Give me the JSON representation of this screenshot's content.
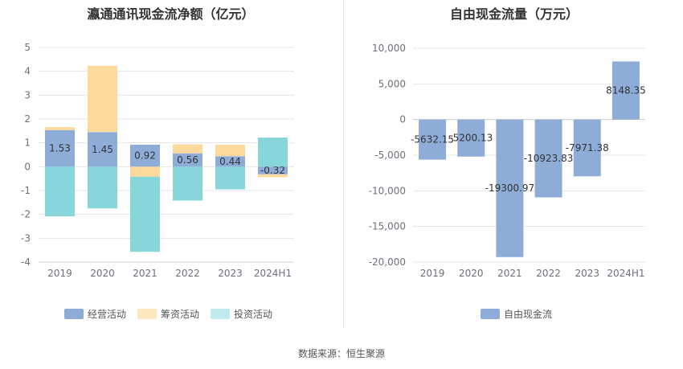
{
  "source": "数据来源：恒生聚源",
  "chart_data": [
    {
      "type": "bar",
      "stacked": true,
      "title": "瀛通通讯现金流净额（亿元）",
      "categories": [
        "2019",
        "2020",
        "2021",
        "2022",
        "2023",
        "2024H1"
      ],
      "ylim": [
        -4,
        5
      ],
      "yticks": [
        5,
        4,
        3,
        2,
        1,
        0,
        -1,
        -2,
        -3,
        -4
      ],
      "grid": true,
      "legend_position": "bottom",
      "series": [
        {
          "name": "经营活动",
          "color": "#8eacd8",
          "values": [
            1.53,
            1.45,
            0.92,
            0.56,
            0.44,
            -0.32
          ],
          "labels": [
            "1.53",
            "1.45",
            "0.92",
            "0.56",
            "0.44",
            "-0.32"
          ]
        },
        {
          "name": "筹资活动",
          "color": "#fdd99c",
          "values": [
            0.13,
            2.78,
            -0.42,
            0.38,
            0.48,
            -0.12
          ]
        },
        {
          "name": "投资活动",
          "color": "#87d6db",
          "values": [
            -2.08,
            -1.75,
            -3.15,
            -1.42,
            -0.95,
            1.22
          ]
        }
      ]
    },
    {
      "type": "bar",
      "title": "自由现金流量（万元）",
      "categories": [
        "2019",
        "2020",
        "2021",
        "2022",
        "2023",
        "2024H1"
      ],
      "ylim": [
        -20000,
        10000
      ],
      "yticks": [
        10000,
        5000,
        0,
        -5000,
        -10000,
        -15000,
        -20000
      ],
      "ytick_labels": [
        "10,000",
        "5,000",
        "0",
        "-5,000",
        "-10,000",
        "-15,000",
        "-20,000"
      ],
      "grid": true,
      "legend_position": "bottom",
      "series": [
        {
          "name": "自由现金流",
          "color": "#8eacd8",
          "values": [
            -5632.15,
            -5200.13,
            -19300.97,
            -10923.83,
            -7971.38,
            8148.35
          ],
          "labels": [
            "-5632.15",
            "-5200.13",
            "-19300.97",
            "-10923.83",
            "-7971.38",
            "8148.35"
          ]
        }
      ]
    }
  ]
}
